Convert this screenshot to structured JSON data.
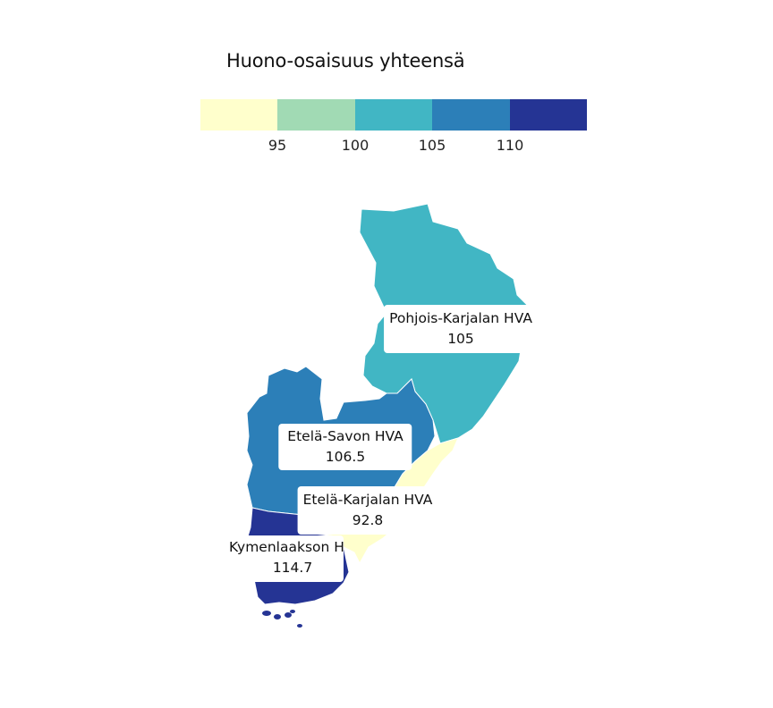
{
  "legend": {
    "title": "Huono-osaisuus yhteensä",
    "ticks": [
      "95",
      "100",
      "105",
      "110"
    ],
    "colors": [
      "#ffffcc",
      "#a1dab4",
      "#41b6c4",
      "#2c7fb8",
      "#253494"
    ]
  },
  "regions": [
    {
      "name": "Pohjois-Karjalan HVA",
      "value": "105",
      "color": "#41b6c4"
    },
    {
      "name": "Etelä-Savon HVA",
      "value": "106.5",
      "color": "#2c7fb8"
    },
    {
      "name": "Etelä-Karjalan HVA",
      "value": "92.8",
      "color": "#ffffcc"
    },
    {
      "name": "Kymenlaakson HVA",
      "value": "114.7",
      "color": "#253494"
    }
  ]
}
